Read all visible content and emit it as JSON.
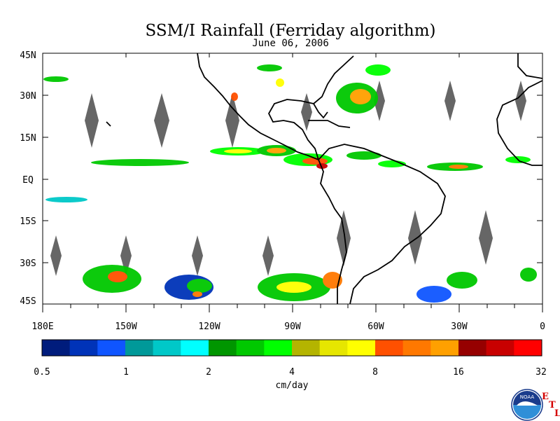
{
  "title": "SSM/I Rainfall (Ferriday algorithm)",
  "subtitle": "June 06, 2006",
  "lat_labels": [
    "45N",
    "30N",
    "15N",
    "EQ",
    "15S",
    "30S",
    "45S"
  ],
  "lon_labels": [
    "180E",
    "150W",
    "120W",
    "90W",
    "60W",
    "30W",
    "0"
  ],
  "colorbar": {
    "colors": [
      "#001c7c",
      "#0033b8",
      "#0f55ff",
      "#009999",
      "#00c8c8",
      "#00ffff",
      "#009600",
      "#00c800",
      "#00ff00",
      "#b4b400",
      "#e6e600",
      "#ffff00",
      "#ff5000",
      "#ff7800",
      "#ffa000",
      "#960000",
      "#c80000",
      "#ff0000"
    ],
    "tick_labels": [
      "0.5",
      "1",
      "2",
      "4",
      "8",
      "16",
      "32"
    ],
    "unit": "cm/day"
  },
  "logo": {
    "text": "NOAA",
    "icon": "noaa-logo",
    "letters": [
      "E",
      "T",
      "L"
    ]
  },
  "colors": {
    "land_mask": "#6e6e6e",
    "coast": "#000000",
    "ocean": "#ffffff"
  }
}
